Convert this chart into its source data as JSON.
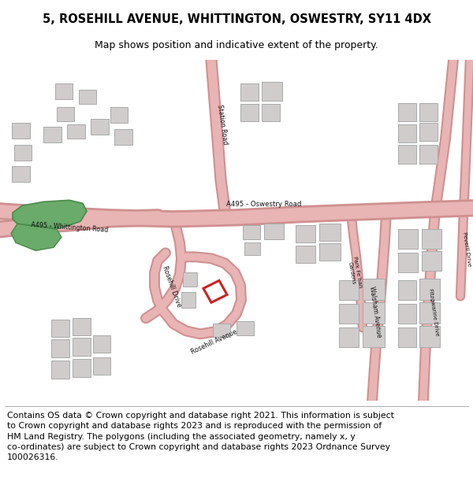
{
  "title": "5, ROSEHILL AVENUE, WHITTINGTON, OSWESTRY, SY11 4DX",
  "subtitle": "Map shows position and indicative extent of the property.",
  "footer_line1": "Contains OS data © Crown copyright and database right 2021. This information is subject",
  "footer_line2": "to Crown copyright and database rights 2023 and is reproduced with the permission of",
  "footer_line3": "HM Land Registry. The polygons (including the associated geometry, namely x, y",
  "footer_line4": "co-ordinates) are subject to Crown copyright and database rights 2023 Ordnance Survey",
  "footer_line5": "100026316.",
  "map_bg": "#f0ede8",
  "road_color": "#e8b4b4",
  "road_border": "#d09090",
  "building_color": "#d0cccc",
  "building_border": "#aaaaaa",
  "green_color": "#6aaa6a",
  "green_border": "#4a8a4a",
  "highlight_color": "#cc2222",
  "title_fontsize": 10.5,
  "subtitle_fontsize": 9,
  "footer_fontsize": 7.8
}
